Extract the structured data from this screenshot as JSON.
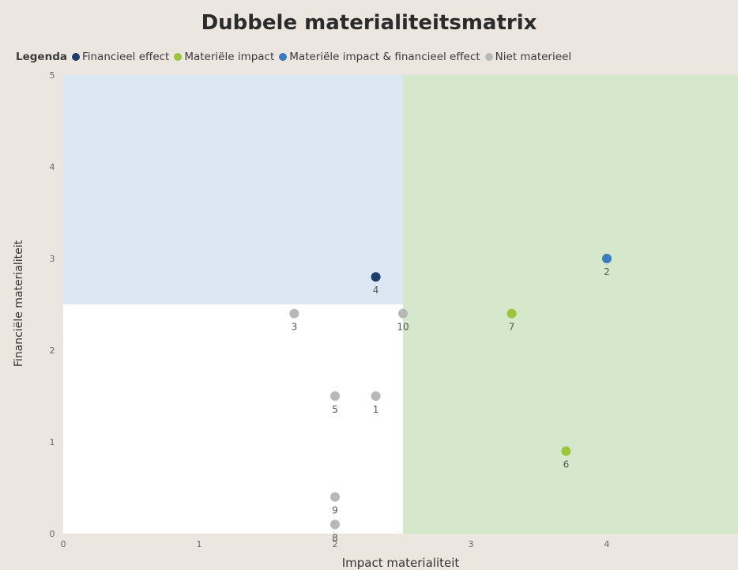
{
  "chart_data": {
    "type": "scatter",
    "title": "Dubbele materialiteitsmatrix",
    "xlabel": "Impact materialiteit",
    "ylabel": "Financiële materialiteit",
    "xlim": [
      0,
      5
    ],
    "ylim": [
      0,
      5
    ],
    "xticks": [
      "0",
      "1",
      "2",
      "3",
      "4"
    ],
    "yticks": [
      "0",
      "1",
      "2",
      "3",
      "4",
      "5"
    ],
    "thresholds": {
      "x": 2.5,
      "y": 2.5
    },
    "legend": {
      "title": "Legenda",
      "placement": "top",
      "items": [
        {
          "name": "Financieel effect",
          "color": "#1f3d6b"
        },
        {
          "name": "Materiële impact",
          "color": "#9bc53d"
        },
        {
          "name": "Materiële impact & financieel effect",
          "color": "#3b7bbf"
        },
        {
          "name": "Niet materieel",
          "color": "#b8b8b8"
        }
      ]
    },
    "region_colors": {
      "financieel": "#dbe7f3",
      "impact": "#d6e8cb",
      "plot_background": "#ffffff"
    },
    "series": [
      {
        "name": "Financieel effect",
        "color": "#1f3d6b",
        "points": [
          {
            "x": 2.3,
            "y": 2.8,
            "label": "4"
          }
        ]
      },
      {
        "name": "Materiële impact",
        "color": "#9bc53d",
        "points": [
          {
            "x": 3.3,
            "y": 2.4,
            "label": "7"
          },
          {
            "x": 3.7,
            "y": 0.9,
            "label": "6"
          }
        ]
      },
      {
        "name": "Materiële impact & financieel effect",
        "color": "#3b7bbf",
        "points": [
          {
            "x": 4.0,
            "y": 3.0,
            "label": "2"
          }
        ]
      },
      {
        "name": "Niet materieel",
        "color": "#b8b8b8",
        "points": [
          {
            "x": 1.7,
            "y": 2.4,
            "label": "3"
          },
          {
            "x": 2.5,
            "y": 2.4,
            "label": "10"
          },
          {
            "x": 2.0,
            "y": 1.5,
            "label": "5"
          },
          {
            "x": 2.3,
            "y": 1.5,
            "label": "1"
          },
          {
            "x": 2.0,
            "y": 0.4,
            "label": "9"
          },
          {
            "x": 2.0,
            "y": 0.1,
            "label": "8"
          }
        ]
      }
    ]
  }
}
